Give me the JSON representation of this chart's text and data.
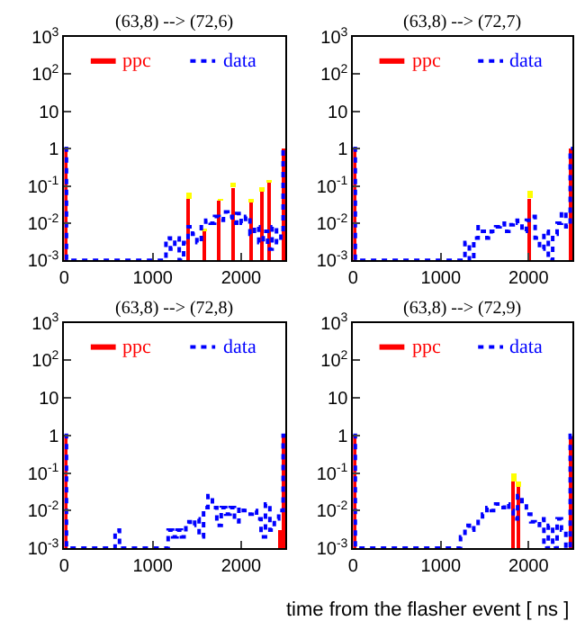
{
  "chart_data": [
    {
      "type": "step",
      "title": "(63,8) --> (72,6)",
      "xlim": [
        0,
        2500
      ],
      "xticks": [
        0,
        1000,
        2000
      ],
      "ylim": [
        0.001,
        1000
      ],
      "log": "y",
      "legend": "top",
      "yticks": [
        {
          "value": 1000,
          "label": "10$^{3}$"
        },
        {
          "value": 100,
          "label": "10$^{2}$"
        },
        10,
        1,
        {
          "value": 0.1,
          "label": "10$^{-1}$"
        },
        {
          "value": 0.01,
          "label": "10$^{-2}$"
        },
        {
          "value": 0.001,
          "label": "10$^{-3}$"
        }
      ],
      "series": [
        {
          "name": "ppc",
          "type": "bar",
          "color": "#ff0000",
          "x": [
            12.5,
            1412.5,
            1587.5,
            1762.5,
            1912.5,
            2112.5,
            2237.5,
            2312.5,
            2487.5
          ],
          "values": [
            1,
            0.044,
            0.006,
            0.04,
            0.09,
            0.035,
            0.07,
            0.12,
            1
          ],
          "errors": [
            null,
            [
              0.044,
              0.065
            ],
            [
              0.006,
              0.007
            ],
            [
              0.04,
              0.045
            ],
            [
              0.09,
              0.12
            ],
            [
              0.035,
              0.045
            ],
            [
              0.07,
              0.09
            ],
            [
              0.12,
              0.14
            ],
            null
          ]
        },
        {
          "name": "data",
          "color": "#0000ff",
          "line_style": "dotted",
          "x": [
            0,
            25,
            1150,
            1200,
            1250,
            1300,
            1350,
            1400,
            1450,
            1500,
            1550,
            1600,
            1650,
            1700,
            1750,
            1800,
            1850,
            1900,
            1950,
            2000,
            2050,
            2100,
            2150,
            2200,
            2250,
            2300,
            2350,
            2400,
            2450,
            2475,
            2500
          ],
          "values": [
            1,
            0.001,
            0.004,
            0.002,
            0.004,
            0.001,
            0.003,
            0.008,
            0.005,
            0.003,
            0.008,
            0.012,
            0.01,
            0.015,
            0.012,
            0.02,
            0.015,
            0.01,
            0.018,
            0.01,
            0.015,
            0.005,
            0.008,
            0.003,
            0.006,
            0.002,
            0.008,
            0.003,
            0.006,
            1,
            1
          ]
        }
      ]
    },
    {
      "type": "step",
      "title": "(63,8) --> (72,7)",
      "xlim": [
        0,
        2500
      ],
      "xticks": [
        0,
        1000,
        2000
      ],
      "ylim": [
        0.001,
        1000
      ],
      "log": "y",
      "legend": "top",
      "yticks": [
        {
          "value": 1000,
          "label": "10$^{3}$"
        },
        {
          "value": 100,
          "label": "10$^{2}$"
        },
        10,
        1,
        {
          "value": 0.1,
          "label": "10$^{-1}$"
        },
        {
          "value": 0.01,
          "label": "10$^{-2}$"
        },
        {
          "value": 0.001,
          "label": "10$^{-3}$"
        }
      ],
      "series": [
        {
          "name": "ppc",
          "type": "bar",
          "color": "#ff0000",
          "x": [
            12.5,
            2012.5,
            2487.5
          ],
          "values": [
            1,
            0.047,
            1
          ],
          "errors": [
            null,
            [
              0.047,
              0.075
            ],
            null
          ]
        },
        {
          "name": "data",
          "color": "#0000ff",
          "line_style": "dotted",
          "x": [
            0,
            25,
            1275,
            1325,
            1375,
            1425,
            1475,
            1525,
            1575,
            1625,
            1675,
            1725,
            1775,
            1825,
            1875,
            1925,
            1975,
            2025,
            2075,
            2125,
            2175,
            2225,
            2275,
            2325,
            2375,
            2425,
            2475,
            2500
          ],
          "values": [
            1,
            0.001,
            0.003,
            0.001,
            0.004,
            0.008,
            0.006,
            0.004,
            0.006,
            0.008,
            0.01,
            0.006,
            0.009,
            0.012,
            0.01,
            0.006,
            0.012,
            0.015,
            0.004,
            0.002,
            0.006,
            0.001,
            0.005,
            0.01,
            0.02,
            0.008,
            1,
            1
          ]
        }
      ]
    },
    {
      "type": "step",
      "title": "(63,8) --> (72,8)",
      "xlim": [
        0,
        2500
      ],
      "xticks": [
        0,
        1000,
        2000
      ],
      "ylim": [
        0.001,
        1000
      ],
      "log": "y",
      "legend": "top",
      "yticks": [
        {
          "value": 1000,
          "label": "10$^{3}$"
        },
        {
          "value": 100,
          "label": "10$^{2}$"
        },
        10,
        1,
        {
          "value": 0.1,
          "label": "10$^{-1}$"
        },
        {
          "value": 0.01,
          "label": "10$^{-2}$"
        },
        {
          "value": 0.001,
          "label": "10$^{-3}$"
        }
      ],
      "series": [
        {
          "name": "ppc",
          "type": "bar",
          "color": "#ff0000",
          "x": [
            12.5,
            2437.5,
            2487.5
          ],
          "values": [
            1,
            0.003,
            1
          ]
        },
        {
          "name": "data",
          "color": "#0000ff",
          "line_style": "dotted",
          "x": [
            0,
            25,
            575,
            625,
            1175,
            1225,
            1275,
            1325,
            1375,
            1425,
            1475,
            1525,
            1575,
            1625,
            1675,
            1725,
            1775,
            1825,
            1875,
            1925,
            1975,
            2025,
            2075,
            2125,
            2175,
            2225,
            2275,
            2325,
            2375,
            2425,
            2475,
            2500
          ],
          "values": [
            1,
            0.001,
            0.003,
            0.001,
            0.003,
            0.002,
            0.003,
            0.002,
            0.005,
            0.004,
            0.006,
            0.002,
            0.012,
            0.025,
            0.012,
            0.004,
            0.012,
            0.008,
            0.012,
            0.005,
            0.012,
            0.01,
            0.008,
            0.01,
            0.006,
            0.002,
            0.015,
            0.003,
            0.006,
            0.01,
            1,
            1
          ]
        }
      ]
    },
    {
      "type": "step",
      "title": "(63,8) --> (72,9)",
      "xlabel": "time from the flasher event [ ns ]",
      "xlim": [
        0,
        2500
      ],
      "xticks": [
        0,
        1000,
        2000
      ],
      "ylim": [
        0.001,
        1000
      ],
      "log": "y",
      "legend": "top",
      "yticks": [
        {
          "value": 1000,
          "label": "10$^{3}$"
        },
        {
          "value": 100,
          "label": "10$^{2}$"
        },
        10,
        1,
        {
          "value": 0.1,
          "label": "10$^{-1}$"
        },
        {
          "value": 0.01,
          "label": "10$^{-2}$"
        },
        {
          "value": 0.001,
          "label": "10$^{-3}$"
        }
      ],
      "series": [
        {
          "name": "ppc",
          "type": "bar",
          "color": "#ff0000",
          "x": [
            12.5,
            1837.5,
            1887.5,
            2487.5
          ],
          "values": [
            1,
            0.06,
            0.042,
            1
          ],
          "errors": [
            null,
            [
              0.06,
              0.095
            ],
            [
              0.042,
              0.06
            ],
            null
          ]
        },
        {
          "name": "data",
          "color": "#0000ff",
          "line_style": "dotted",
          "x": [
            0,
            25,
            1225,
            1275,
            1325,
            1375,
            1425,
            1475,
            1525,
            1575,
            1625,
            1675,
            1725,
            1775,
            1825,
            1875,
            1925,
            1975,
            2025,
            2075,
            2125,
            2175,
            2225,
            2275,
            2325,
            2375,
            2425,
            2475,
            2500
          ],
          "values": [
            1,
            0.001,
            0.002,
            0.004,
            0.003,
            0.004,
            0.006,
            0.008,
            0.012,
            0.01,
            0.015,
            0.012,
            0.015,
            0.01,
            0.006,
            0.025,
            0.015,
            0.008,
            0.005,
            0.004,
            0.006,
            0.001,
            0.004,
            0.001,
            0.006,
            0.003,
            0.001,
            1,
            1
          ]
        }
      ]
    }
  ]
}
